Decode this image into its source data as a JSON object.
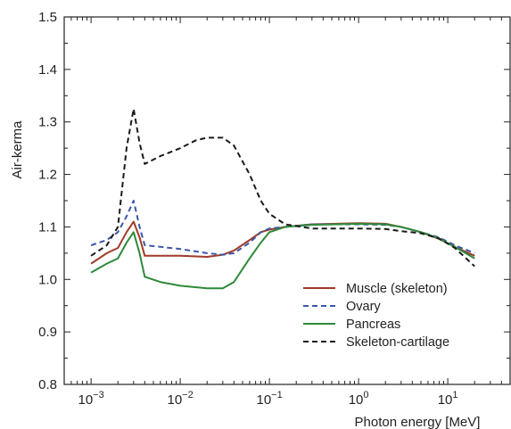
{
  "chart_data": {
    "type": "line",
    "xlabel": "Photon energy [MeV]",
    "ylabel": "Air-kerma",
    "xscale": "log",
    "xlim": [
      0.0005,
      50
    ],
    "ylim": [
      0.8,
      1.5
    ],
    "grid": false,
    "legend": "bottom-right",
    "x_ticks": [
      {
        "value": 0.001,
        "base": "10",
        "exp": "−3"
      },
      {
        "value": 0.01,
        "base": "10",
        "exp": "−2"
      },
      {
        "value": 0.1,
        "base": "10",
        "exp": "−1"
      },
      {
        "value": 1,
        "base": "10",
        "exp": "0"
      },
      {
        "value": 10,
        "base": "10",
        "exp": "1"
      }
    ],
    "y_ticks": [
      {
        "value": 0.8,
        "label": "0.8"
      },
      {
        "value": 0.9,
        "label": "0.9"
      },
      {
        "value": 1.0,
        "label": "1.0"
      },
      {
        "value": 1.1,
        "label": "1.1"
      },
      {
        "value": 1.2,
        "label": "1.2"
      },
      {
        "value": 1.3,
        "label": "1.3"
      },
      {
        "value": 1.4,
        "label": "1.4"
      },
      {
        "value": 1.5,
        "label": "1.5"
      }
    ],
    "series": [
      {
        "name": "Muscle (skeleton)",
        "color": "#a03a2a",
        "dash": "solid",
        "points": [
          [
            0.001,
            1.03
          ],
          [
            0.0015,
            1.05
          ],
          [
            0.002,
            1.06
          ],
          [
            0.0025,
            1.09
          ],
          [
            0.003,
            1.11
          ],
          [
            0.0035,
            1.08
          ],
          [
            0.004,
            1.045
          ],
          [
            0.006,
            1.045
          ],
          [
            0.01,
            1.045
          ],
          [
            0.02,
            1.043
          ],
          [
            0.03,
            1.047
          ],
          [
            0.04,
            1.055
          ],
          [
            0.06,
            1.075
          ],
          [
            0.08,
            1.09
          ],
          [
            0.1,
            1.095
          ],
          [
            0.15,
            1.1
          ],
          [
            0.3,
            1.105
          ],
          [
            1,
            1.107
          ],
          [
            2,
            1.106
          ],
          [
            3,
            1.1
          ],
          [
            5,
            1.09
          ],
          [
            8,
            1.077
          ],
          [
            12,
            1.062
          ],
          [
            20,
            1.045
          ]
        ]
      },
      {
        "name": "Ovary",
        "color": "#3a57a8",
        "dash": "dashed",
        "points": [
          [
            0.001,
            1.065
          ],
          [
            0.0015,
            1.075
          ],
          [
            0.002,
            1.09
          ],
          [
            0.0025,
            1.12
          ],
          [
            0.003,
            1.15
          ],
          [
            0.0035,
            1.1
          ],
          [
            0.004,
            1.065
          ],
          [
            0.006,
            1.062
          ],
          [
            0.01,
            1.058
          ],
          [
            0.02,
            1.05
          ],
          [
            0.03,
            1.047
          ],
          [
            0.04,
            1.05
          ],
          [
            0.06,
            1.07
          ],
          [
            0.08,
            1.09
          ],
          [
            0.1,
            1.097
          ],
          [
            0.15,
            1.1
          ],
          [
            0.3,
            1.105
          ],
          [
            1,
            1.105
          ],
          [
            2,
            1.104
          ],
          [
            3,
            1.1
          ],
          [
            5,
            1.09
          ],
          [
            8,
            1.08
          ],
          [
            12,
            1.065
          ],
          [
            20,
            1.05
          ]
        ]
      },
      {
        "name": "Pancreas",
        "color": "#2e8a3a",
        "dash": "solid",
        "points": [
          [
            0.001,
            1.013
          ],
          [
            0.0015,
            1.03
          ],
          [
            0.002,
            1.04
          ],
          [
            0.0025,
            1.07
          ],
          [
            0.003,
            1.09
          ],
          [
            0.0035,
            1.05
          ],
          [
            0.004,
            1.005
          ],
          [
            0.006,
            0.995
          ],
          [
            0.01,
            0.988
          ],
          [
            0.02,
            0.983
          ],
          [
            0.03,
            0.983
          ],
          [
            0.04,
            0.995
          ],
          [
            0.06,
            1.04
          ],
          [
            0.08,
            1.07
          ],
          [
            0.1,
            1.09
          ],
          [
            0.15,
            1.1
          ],
          [
            0.3,
            1.104
          ],
          [
            1,
            1.106
          ],
          [
            2,
            1.105
          ],
          [
            3,
            1.1
          ],
          [
            5,
            1.09
          ],
          [
            8,
            1.078
          ],
          [
            12,
            1.062
          ],
          [
            20,
            1.04
          ]
        ]
      },
      {
        "name": "Skeleton-cartilage",
        "color": "#1a1a1a",
        "dash": "dashed",
        "points": [
          [
            0.001,
            1.045
          ],
          [
            0.0015,
            1.065
          ],
          [
            0.002,
            1.1
          ],
          [
            0.0025,
            1.25
          ],
          [
            0.003,
            1.325
          ],
          [
            0.0035,
            1.26
          ],
          [
            0.004,
            1.22
          ],
          [
            0.006,
            1.235
          ],
          [
            0.01,
            1.25
          ],
          [
            0.015,
            1.265
          ],
          [
            0.02,
            1.27
          ],
          [
            0.03,
            1.27
          ],
          [
            0.04,
            1.255
          ],
          [
            0.06,
            1.2
          ],
          [
            0.08,
            1.15
          ],
          [
            0.1,
            1.125
          ],
          [
            0.15,
            1.105
          ],
          [
            0.3,
            1.097
          ],
          [
            1,
            1.097
          ],
          [
            2,
            1.096
          ],
          [
            3,
            1.092
          ],
          [
            5,
            1.088
          ],
          [
            8,
            1.078
          ],
          [
            12,
            1.06
          ],
          [
            20,
            1.025
          ]
        ]
      }
    ]
  }
}
